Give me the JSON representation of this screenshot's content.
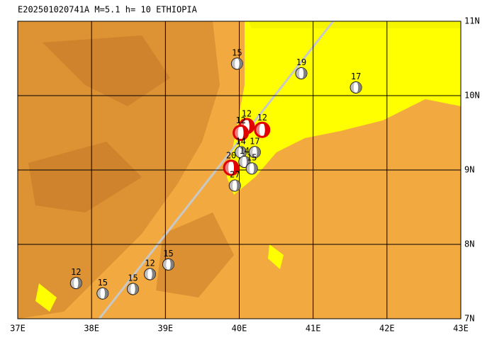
{
  "chart_data": {
    "type": "map",
    "title": "E202501020741A  M=5.1  h= 10  ETHIOPIA",
    "xlim": [
      37,
      43
    ],
    "ylim": [
      7,
      11
    ],
    "xticks": [
      {
        "value": 37,
        "label": "37E"
      },
      {
        "value": 38,
        "label": "38E"
      },
      {
        "value": 39,
        "label": "39E"
      },
      {
        "value": 40,
        "label": "40E"
      },
      {
        "value": 41,
        "label": "41E"
      },
      {
        "value": 42,
        "label": "42E"
      },
      {
        "value": 43,
        "label": "43E"
      }
    ],
    "yticks": [
      {
        "value": 7,
        "label": "7N"
      },
      {
        "value": 8,
        "label": "8N"
      },
      {
        "value": 9,
        "label": "9N"
      },
      {
        "value": 10,
        "label": "10N"
      },
      {
        "value": 11,
        "label": "11N"
      }
    ],
    "events": [
      {
        "lon": 39.97,
        "lat": 10.43,
        "depth": 15,
        "color": "#808080"
      },
      {
        "lon": 40.84,
        "lat": 10.3,
        "depth": 19,
        "color": "#808080"
      },
      {
        "lon": 41.58,
        "lat": 10.11,
        "depth": 17,
        "color": "#808080"
      },
      {
        "lon": 40.1,
        "lat": 9.59,
        "depth": 12,
        "color": "#e00000"
      },
      {
        "lon": 40.31,
        "lat": 9.54,
        "depth": 12,
        "color": "#e00000"
      },
      {
        "lon": 40.02,
        "lat": 9.5,
        "depth": 12,
        "color": "#e00000"
      },
      {
        "lon": 40.02,
        "lat": 9.24,
        "depth": 14,
        "color": "#808080"
      },
      {
        "lon": 40.21,
        "lat": 9.24,
        "depth": 17,
        "color": "#808080"
      },
      {
        "lon": 40.07,
        "lat": 9.11,
        "depth": 14,
        "color": "#808080"
      },
      {
        "lon": 40.17,
        "lat": 9.02,
        "depth": 15,
        "color": "#808080"
      },
      {
        "lon": 39.89,
        "lat": 9.03,
        "depth": 20,
        "color": "#e00000"
      },
      {
        "lon": 39.94,
        "lat": 8.79,
        "depth": 27,
        "color": "#808080"
      },
      {
        "lon": 39.04,
        "lat": 7.73,
        "depth": 15,
        "color": "#808080"
      },
      {
        "lon": 38.79,
        "lat": 7.6,
        "depth": 12,
        "color": "#808080"
      },
      {
        "lon": 38.56,
        "lat": 7.4,
        "depth": 15,
        "color": "#808080"
      },
      {
        "lon": 38.15,
        "lat": 7.34,
        "depth": 15,
        "color": "#808080"
      },
      {
        "lon": 37.79,
        "lat": 7.48,
        "depth": 12,
        "color": "#808080"
      }
    ]
  }
}
